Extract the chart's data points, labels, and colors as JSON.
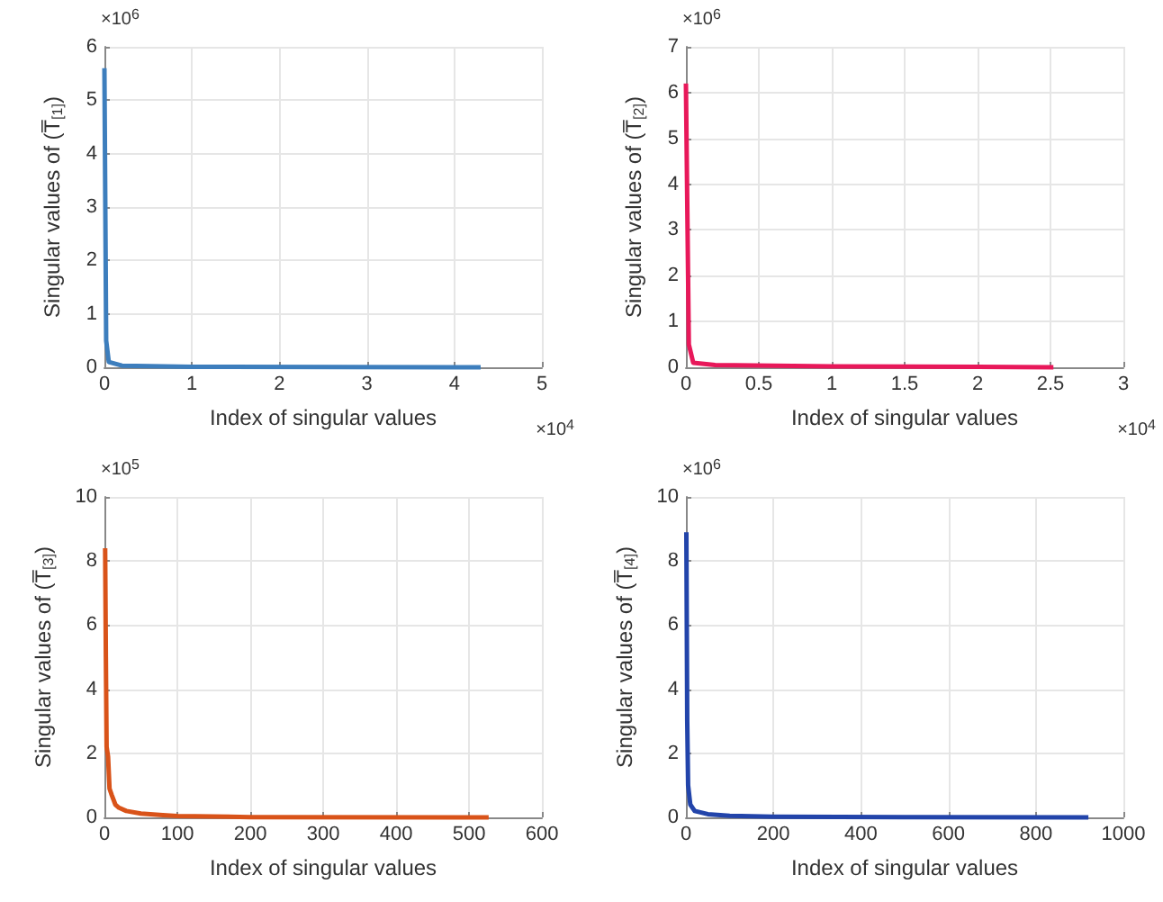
{
  "chart_data": [
    {
      "type": "line",
      "ylabel": "Singular values of (T̅$_{[1]}$)",
      "xlabel": "Index of singular values",
      "annotations": [
        "×10$^{6}$",
        "×10$^{4}$"
      ],
      "xlim": [
        0,
        5
      ],
      "xticks": [
        0,
        1,
        2,
        3,
        4,
        5
      ],
      "ylim": [
        0,
        6
      ],
      "yticks": [
        0,
        1,
        2,
        3,
        4,
        5,
        6
      ],
      "grid": true,
      "series": [
        {
          "color": "#3d7ebd",
          "x": [
            0,
            0.02,
            0.05,
            0.2,
            1,
            4.3
          ],
          "values": [
            5.6,
            0.5,
            0.1,
            0.03,
            0.01,
            0
          ]
        }
      ]
    },
    {
      "type": "line",
      "ylabel": "Singular values of (T̅$_{[2]}$)",
      "xlabel": "Index of singular values",
      "annotations": [
        "×10$^{6}$",
        "×10$^{4}$"
      ],
      "xlim": [
        0,
        3
      ],
      "xticks": [
        0,
        0.5,
        1,
        1.5,
        2,
        2.5,
        3
      ],
      "ylim": [
        0,
        7
      ],
      "yticks": [
        0,
        1,
        2,
        3,
        4,
        5,
        6,
        7
      ],
      "grid": true,
      "series": [
        {
          "color": "#e8185a",
          "x": [
            0,
            0.02,
            0.05,
            0.2,
            1,
            2,
            2.52
          ],
          "values": [
            6.2,
            0.5,
            0.1,
            0.05,
            0.02,
            0.01,
            0
          ]
        }
      ]
    },
    {
      "type": "line",
      "ylabel": "Singular values of (T̅$_{[3]}$)",
      "xlabel": "Index of singular values",
      "annotations": [
        "×10$^{5}$"
      ],
      "xlim": [
        0,
        600
      ],
      "xticks": [
        0,
        100,
        200,
        300,
        400,
        500,
        600
      ],
      "ylim": [
        0,
        10
      ],
      "yticks": [
        0,
        2,
        4,
        6,
        8,
        10
      ],
      "grid": true,
      "series": [
        {
          "color": "#d95319",
          "x": [
            1,
            2,
            3,
            5,
            7,
            10,
            15,
            20,
            30,
            50,
            80,
            100,
            200,
            527
          ],
          "values": [
            8.4,
            5.0,
            2.2,
            1.9,
            0.9,
            0.7,
            0.4,
            0.3,
            0.2,
            0.12,
            0.07,
            0.04,
            0.01,
            0
          ]
        }
      ]
    },
    {
      "type": "line",
      "ylabel": "Singular values of (T̅$_{[4]}$)",
      "xlabel": "Index of singular values",
      "annotations": [
        "×10$^{6}$"
      ],
      "xlim": [
        0,
        1000
      ],
      "xticks": [
        0,
        200,
        400,
        600,
        800,
        1000
      ],
      "ylim": [
        0,
        10
      ],
      "yticks": [
        0,
        2,
        4,
        6,
        8,
        10
      ],
      "grid": true,
      "series": [
        {
          "color": "#2244aa",
          "x": [
            1,
            3,
            5,
            10,
            20,
            50,
            100,
            200,
            500,
            920
          ],
          "values": [
            8.9,
            3.0,
            1.0,
            0.4,
            0.2,
            0.1,
            0.05,
            0.02,
            0.01,
            0
          ]
        }
      ]
    }
  ]
}
